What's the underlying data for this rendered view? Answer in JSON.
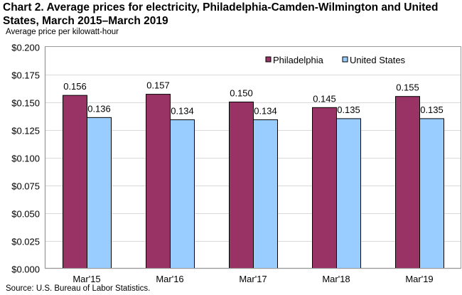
{
  "chart_data": {
    "type": "bar",
    "title": "Chart 2. Average prices for electricity, Philadelphia-Camden-Wilmington  and United States, March 2015–March 2019",
    "ylabel": "Average price per kilowatt-hour",
    "xlabel": "",
    "ylim": [
      0,
      0.2
    ],
    "yticks": [
      0,
      0.025,
      0.05,
      0.075,
      0.1,
      0.125,
      0.15,
      0.175,
      0.2
    ],
    "ytick_labels": [
      "$0.000",
      "$0.025",
      "$0.050",
      "$0.075",
      "$0.100",
      "$0.125",
      "$0.150",
      "$0.175",
      "$0.200"
    ],
    "categories": [
      "Mar'15",
      "Mar'16",
      "Mar'17",
      "Mar'18",
      "Mar'19"
    ],
    "series": [
      {
        "name": "Philadelphia",
        "color": "#993366",
        "values": [
          0.156,
          0.157,
          0.15,
          0.145,
          0.155
        ],
        "labels": [
          "0.156",
          "0.157",
          "0.150",
          "0.145",
          "0.155"
        ]
      },
      {
        "name": "United States",
        "color": "#99CCFF",
        "values": [
          0.136,
          0.134,
          0.134,
          0.135,
          0.135
        ],
        "labels": [
          "0.136",
          "0.134",
          "0.134",
          "0.135",
          "0.135"
        ]
      }
    ],
    "grid": true,
    "legend_position": "top-right",
    "source": "Source: U.S. Bureau of Labor Statistics."
  }
}
